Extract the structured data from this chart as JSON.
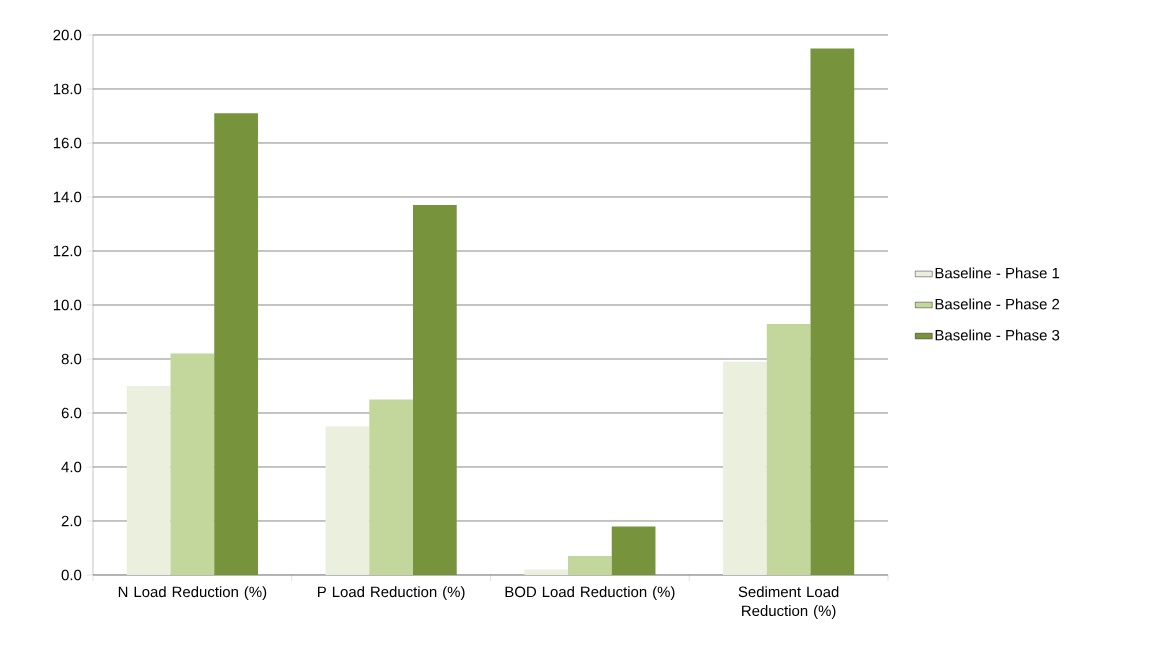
{
  "chart_data": {
    "type": "bar",
    "categories": [
      "N Load Reduction (%)",
      "P Load Reduction (%)",
      "BOD Load Reduction (%)",
      "Sediment Load Reduction (%)"
    ],
    "series": [
      {
        "name": "Baseline - Phase 1",
        "color": "#ebf0de",
        "values": [
          7.0,
          5.5,
          0.2,
          7.9
        ]
      },
      {
        "name": "Baseline - Phase 2",
        "color": "#c3d69b",
        "values": [
          8.2,
          6.5,
          0.7,
          9.3
        ]
      },
      {
        "name": "Baseline - Phase 3",
        "color": "#77933c",
        "values": [
          17.1,
          13.7,
          1.8,
          19.5
        ]
      }
    ],
    "ylim": [
      0,
      20
    ],
    "yticks": [
      {
        "value": 0,
        "label": "0.0"
      },
      {
        "value": 2,
        "label": "2.0"
      },
      {
        "value": 4,
        "label": "4.0"
      },
      {
        "value": 6,
        "label": "6.0"
      },
      {
        "value": 8,
        "label": "8.0"
      },
      {
        "value": 10,
        "label": "10.0"
      },
      {
        "value": 12,
        "label": "12.0"
      },
      {
        "value": 14,
        "label": "14.0"
      },
      {
        "value": 16,
        "label": "16.0"
      },
      {
        "value": 18,
        "label": "18.0"
      },
      {
        "value": 20,
        "label": "20.0"
      }
    ],
    "grid": "y",
    "legend": "right"
  }
}
